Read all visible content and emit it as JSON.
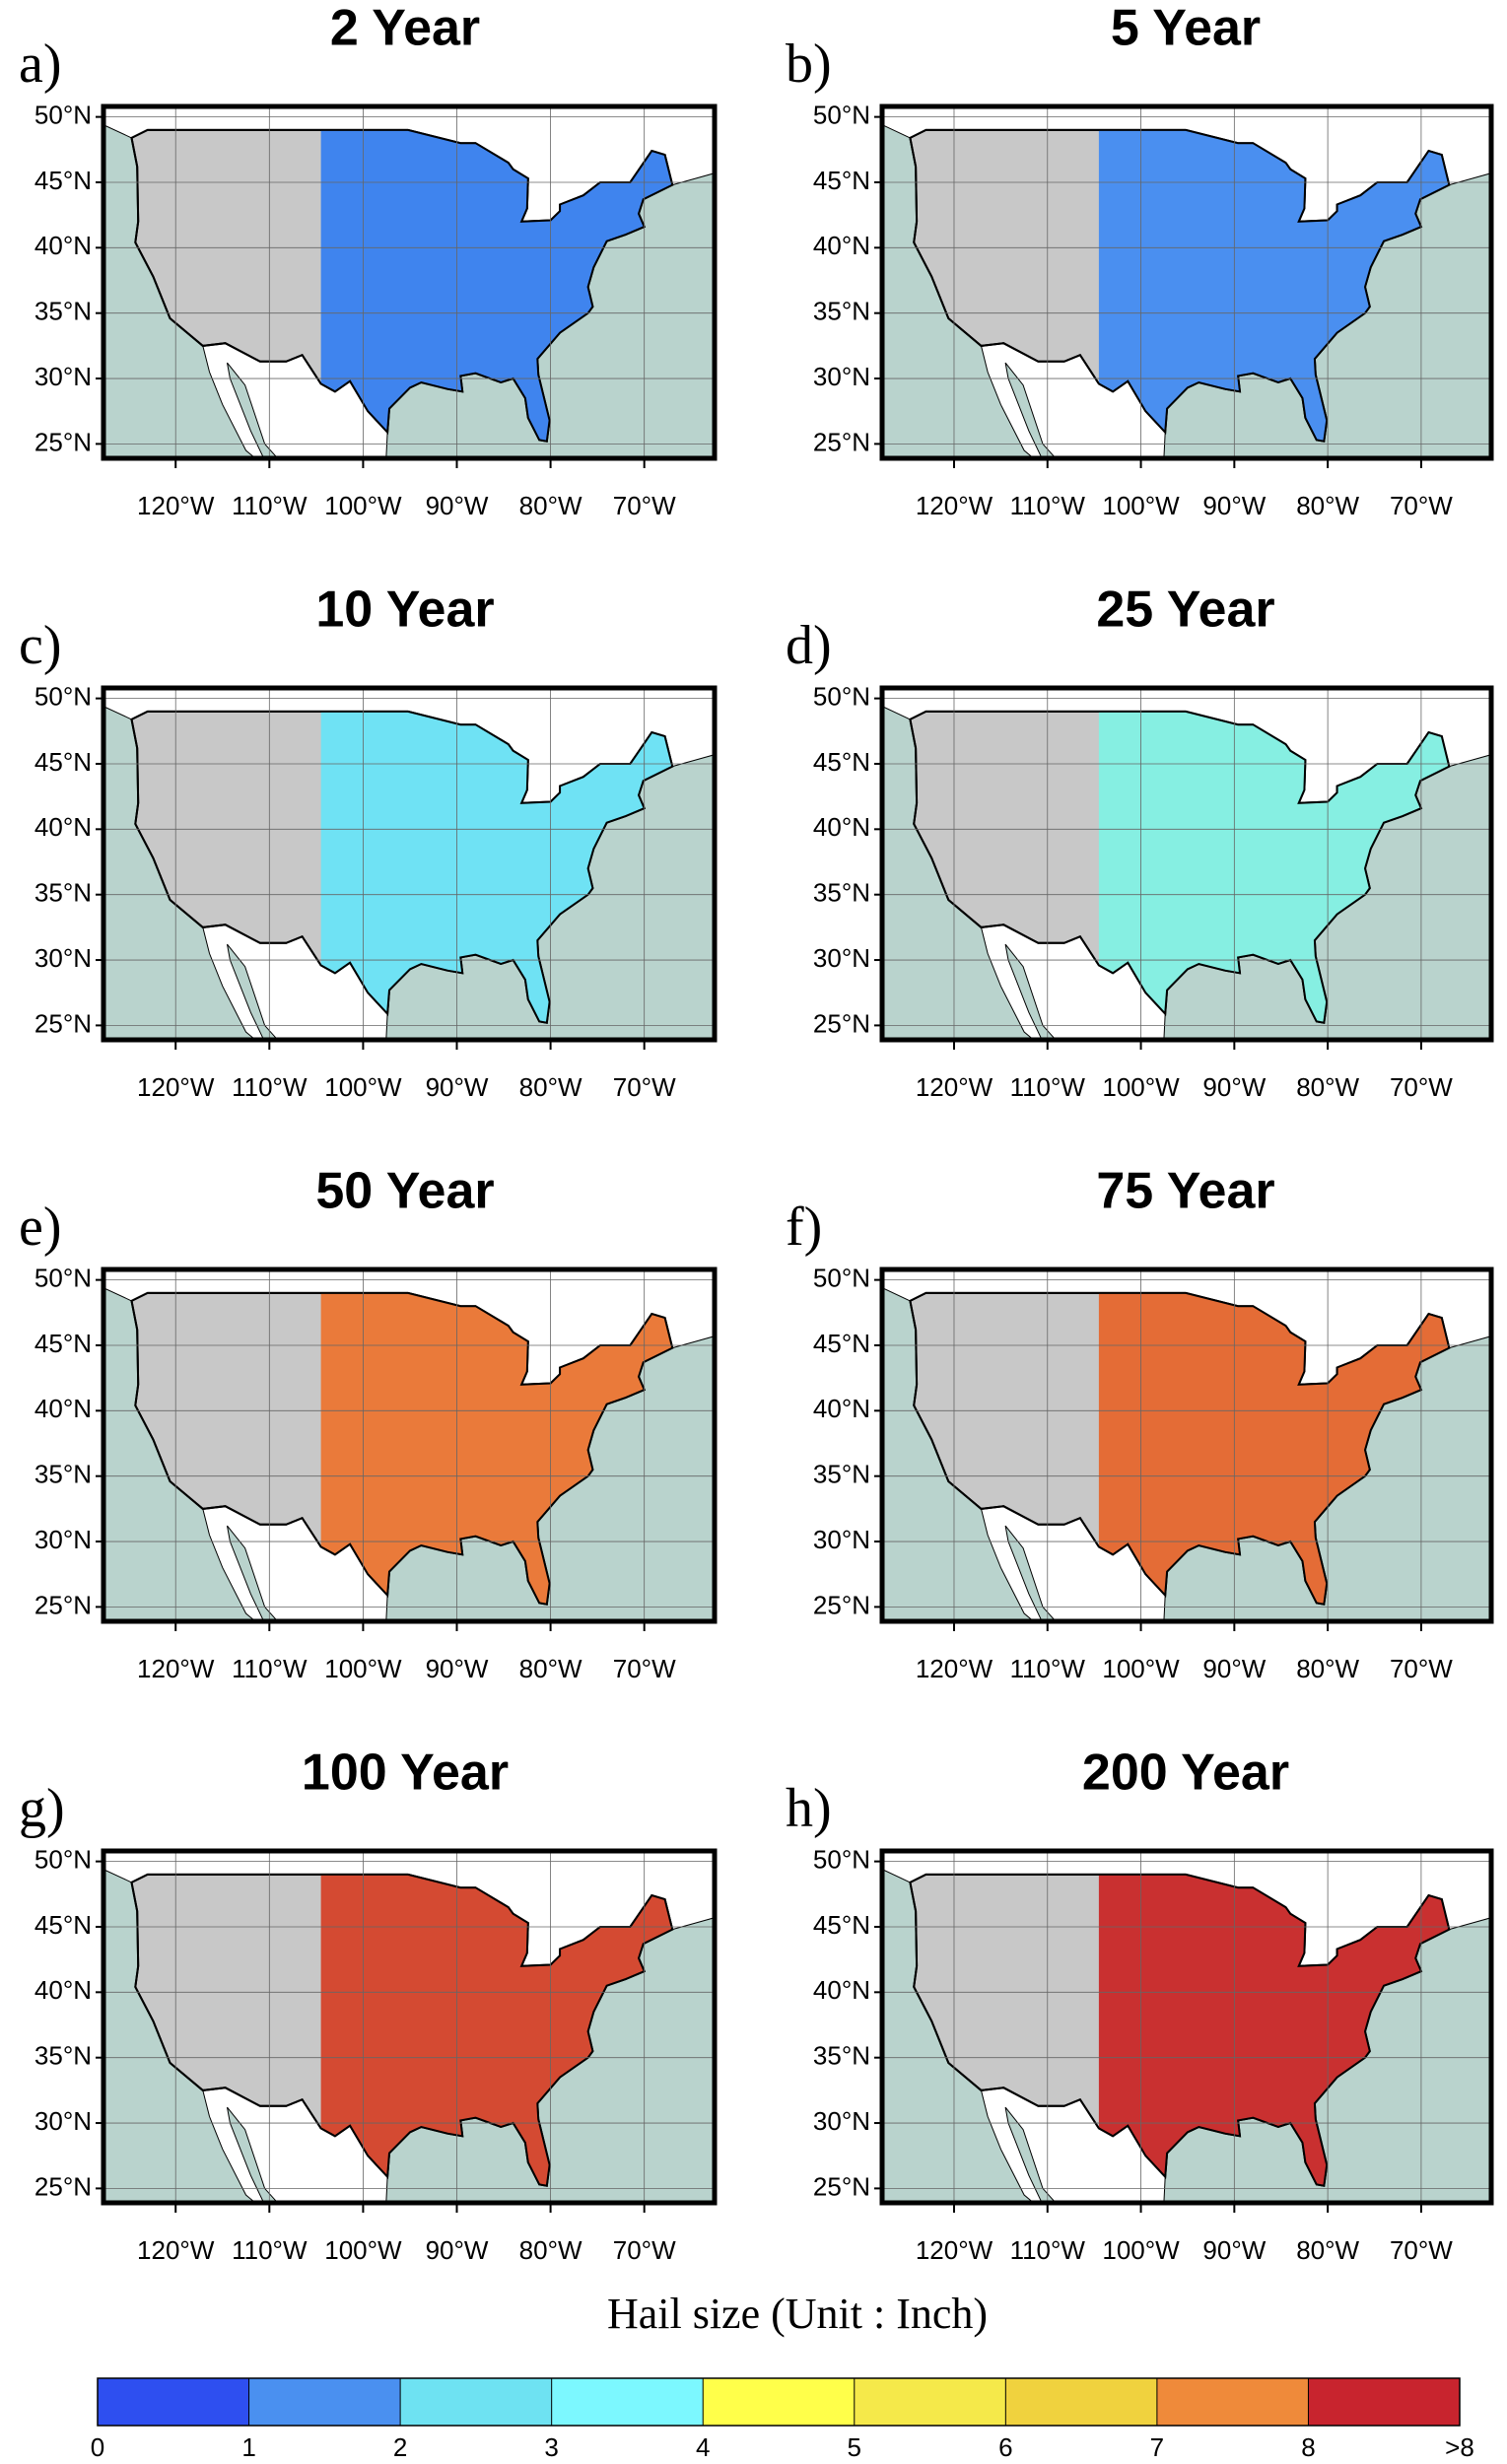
{
  "panels": [
    {
      "letter": "a)",
      "title": "2 Year",
      "color": "#3f84ee"
    },
    {
      "letter": "b)",
      "title": "5 Year",
      "color": "#4a8ff0"
    },
    {
      "letter": "c)",
      "title": "10 Year",
      "color": "#6fe2f4"
    },
    {
      "letter": "d)",
      "title": "25 Year",
      "color": "#86efe2"
    },
    {
      "letter": "e)",
      "title": "50 Year",
      "color": "#ea7a3a"
    },
    {
      "letter": "f)",
      "title": "75 Year",
      "color": "#e46c36"
    },
    {
      "letter": "g)",
      "title": "100 Year",
      "color": "#d44a32"
    },
    {
      "letter": "h)",
      "title": "200 Year",
      "color": "#c93030"
    }
  ],
  "map": {
    "xlim": [
      -127.7,
      -62.5
    ],
    "ylim": [
      23.9,
      50.8
    ],
    "xticks": [
      {
        "value": -120,
        "label": "120°W"
      },
      {
        "value": -110,
        "label": "110°W"
      },
      {
        "value": -100,
        "label": "100°W"
      },
      {
        "value": -90,
        "label": "90°W"
      },
      {
        "value": -80,
        "label": "80°W"
      },
      {
        "value": -70,
        "label": "70°W"
      }
    ],
    "yticks": [
      {
        "value": 25,
        "label": "25°N"
      },
      {
        "value": 30,
        "label": "30°N"
      },
      {
        "value": 35,
        "label": "35°N"
      },
      {
        "value": 40,
        "label": "40°N"
      },
      {
        "value": 45,
        "label": "45°N"
      },
      {
        "value": 50,
        "label": "50°N"
      }
    ]
  },
  "colorbar": {
    "title": "Hail size (Unit : Inch)",
    "labels": [
      "0",
      "1",
      "2",
      "3",
      "4",
      "5",
      "6",
      "7",
      "8",
      ">8"
    ],
    "colors": [
      "#2e4ff0",
      "#4a90f0",
      "#6ee2f2",
      "#7cf8ff",
      "#ffff4a",
      "#f5e94a",
      "#f0d23e",
      "#ef8a3a",
      "#c8242e"
    ]
  }
}
